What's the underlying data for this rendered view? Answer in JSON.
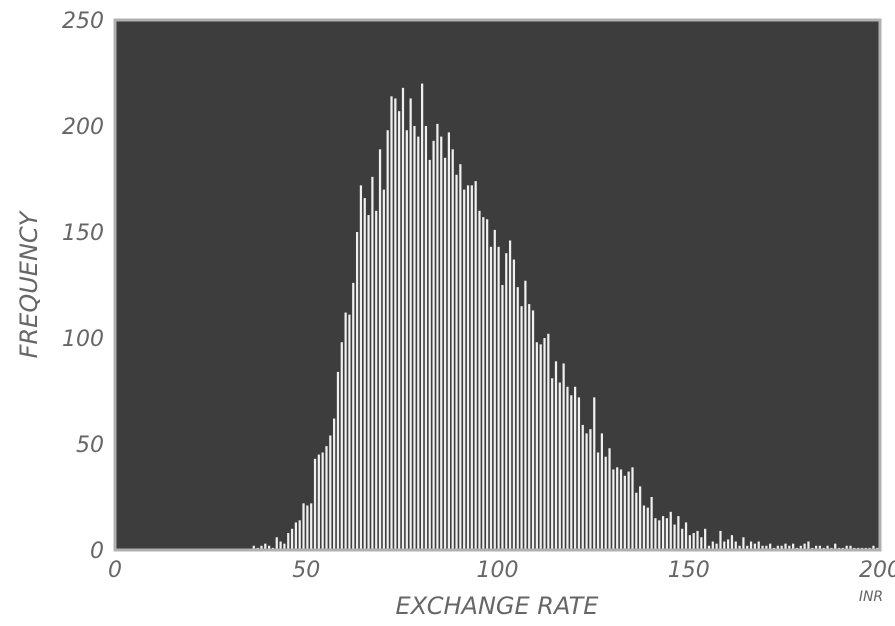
{
  "chart_data": {
    "type": "bar",
    "title": "",
    "xlabel": "EXCHANGE RATE",
    "ylabel": "FREQUENCY",
    "x_unit": "INR",
    "xlim": [
      0,
      200
    ],
    "ylim": [
      0,
      250
    ],
    "x_ticks": [
      0,
      50,
      100,
      150,
      200
    ],
    "y_ticks": [
      0,
      50,
      100,
      150,
      200,
      250
    ],
    "grid": false,
    "colors": {
      "plot_background": "#3d3d3d",
      "bars": "#f0f0f0",
      "frame": "#b0b0b0",
      "text": "#666666"
    },
    "bin_width": 1,
    "x": [
      36,
      37,
      38,
      39,
      40,
      41,
      42,
      43,
      44,
      45,
      46,
      47,
      48,
      49,
      50,
      51,
      52,
      53,
      54,
      55,
      56,
      57,
      58,
      59,
      60,
      61,
      62,
      63,
      64,
      65,
      66,
      67,
      68,
      69,
      70,
      71,
      72,
      73,
      74,
      75,
      76,
      77,
      78,
      79,
      80,
      81,
      82,
      83,
      84,
      85,
      86,
      87,
      88,
      89,
      90,
      91,
      92,
      93,
      94,
      95,
      96,
      97,
      98,
      99,
      100,
      101,
      102,
      103,
      104,
      105,
      106,
      107,
      108,
      109,
      110,
      111,
      112,
      113,
      114,
      115,
      116,
      117,
      118,
      119,
      120,
      121,
      122,
      123,
      124,
      125,
      126,
      127,
      128,
      129,
      130,
      131,
      132,
      133,
      134,
      135,
      136,
      137,
      138,
      139,
      140,
      141,
      142,
      143,
      144,
      145,
      146,
      147,
      148,
      149,
      150,
      151,
      152,
      153,
      154,
      155,
      156,
      157,
      158,
      159,
      160,
      161,
      162,
      163,
      164,
      165,
      166,
      167,
      168,
      169,
      170,
      171,
      172,
      173,
      174,
      175,
      176,
      177,
      178,
      179,
      180,
      181,
      182,
      183,
      184,
      185,
      186,
      187,
      188,
      189,
      190,
      191,
      192,
      193,
      194,
      195,
      196,
      197,
      198,
      199
    ],
    "values": [
      2,
      1,
      2,
      3,
      2,
      1,
      6,
      4,
      3,
      8,
      10,
      13,
      14,
      22,
      21,
      22,
      43,
      45,
      46,
      49,
      54,
      62,
      84,
      98,
      112,
      111,
      126,
      150,
      172,
      166,
      158,
      176,
      160,
      189,
      170,
      198,
      214,
      213,
      207,
      218,
      198,
      213,
      200,
      195,
      220,
      200,
      184,
      193,
      201,
      195,
      185,
      197,
      189,
      177,
      182,
      170,
      172,
      172,
      174,
      160,
      157,
      156,
      143,
      151,
      143,
      125,
      140,
      146,
      137,
      124,
      115,
      127,
      116,
      113,
      98,
      97,
      100,
      102,
      81,
      89,
      79,
      88,
      77,
      73,
      77,
      72,
      59,
      55,
      57,
      72,
      46,
      55,
      44,
      48,
      38,
      39,
      38,
      35,
      37,
      39,
      27,
      30,
      21,
      20,
      25,
      15,
      14,
      16,
      15,
      18,
      12,
      16,
      10,
      13,
      7,
      8,
      9,
      6,
      10,
      2,
      4,
      3,
      9,
      4,
      5,
      7,
      4,
      2,
      6,
      2,
      4,
      3,
      4,
      2,
      2,
      3,
      1,
      2,
      2,
      3,
      2,
      3,
      1,
      2,
      3,
      4,
      1,
      2,
      2,
      1,
      2,
      1,
      3,
      1,
      1,
      2,
      2,
      1,
      1,
      1,
      1,
      1,
      2,
      1
    ]
  }
}
